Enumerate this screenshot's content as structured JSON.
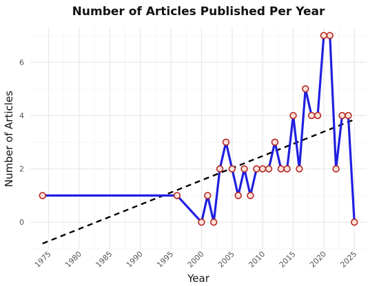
{
  "chart_data": {
    "type": "line",
    "title": "Number of Articles Published Per Year",
    "xlabel": "Year",
    "ylabel": "Number of Articles",
    "xlim": [
      1972,
      2027
    ],
    "ylim": [
      -1.0,
      7.3
    ],
    "x_ticks": [
      1975,
      1980,
      1985,
      1990,
      1995,
      2000,
      2005,
      2010,
      2015,
      2020,
      2025
    ],
    "x_tick_labels": [
      "1975",
      "1980",
      "1985",
      "1990",
      "1995",
      "2000",
      "2005",
      "2010",
      "2015",
      "2020",
      "2025"
    ],
    "y_ticks": [
      0,
      2,
      4,
      6
    ],
    "y_tick_labels": [
      "0",
      "2",
      "4",
      "6"
    ],
    "grid": true,
    "series": [
      {
        "x": [
          1974,
          1996,
          2000,
          2001,
          2002,
          2003,
          2004,
          2005,
          2006,
          2007,
          2008,
          2009,
          2010,
          2011,
          2012,
          2013,
          2014,
          2015,
          2016,
          2017,
          2018,
          2019,
          2020,
          2021,
          2022,
          2023,
          2024,
          2025
        ],
        "y": [
          1,
          1,
          0,
          1,
          0,
          2,
          3,
          2,
          1,
          2,
          1,
          2,
          2,
          2,
          3,
          2,
          2,
          4,
          2,
          5,
          4,
          4,
          7,
          7,
          2,
          4,
          4,
          0
        ],
        "color": "#1f1fe0",
        "marker_fill": "#fde3d8",
        "marker_edge": "#b22222"
      }
    ],
    "trend_line": {
      "x": [
        1974,
        2025
      ],
      "y": [
        -0.8,
        3.85
      ],
      "color": "#000000",
      "style": "dashed"
    }
  }
}
